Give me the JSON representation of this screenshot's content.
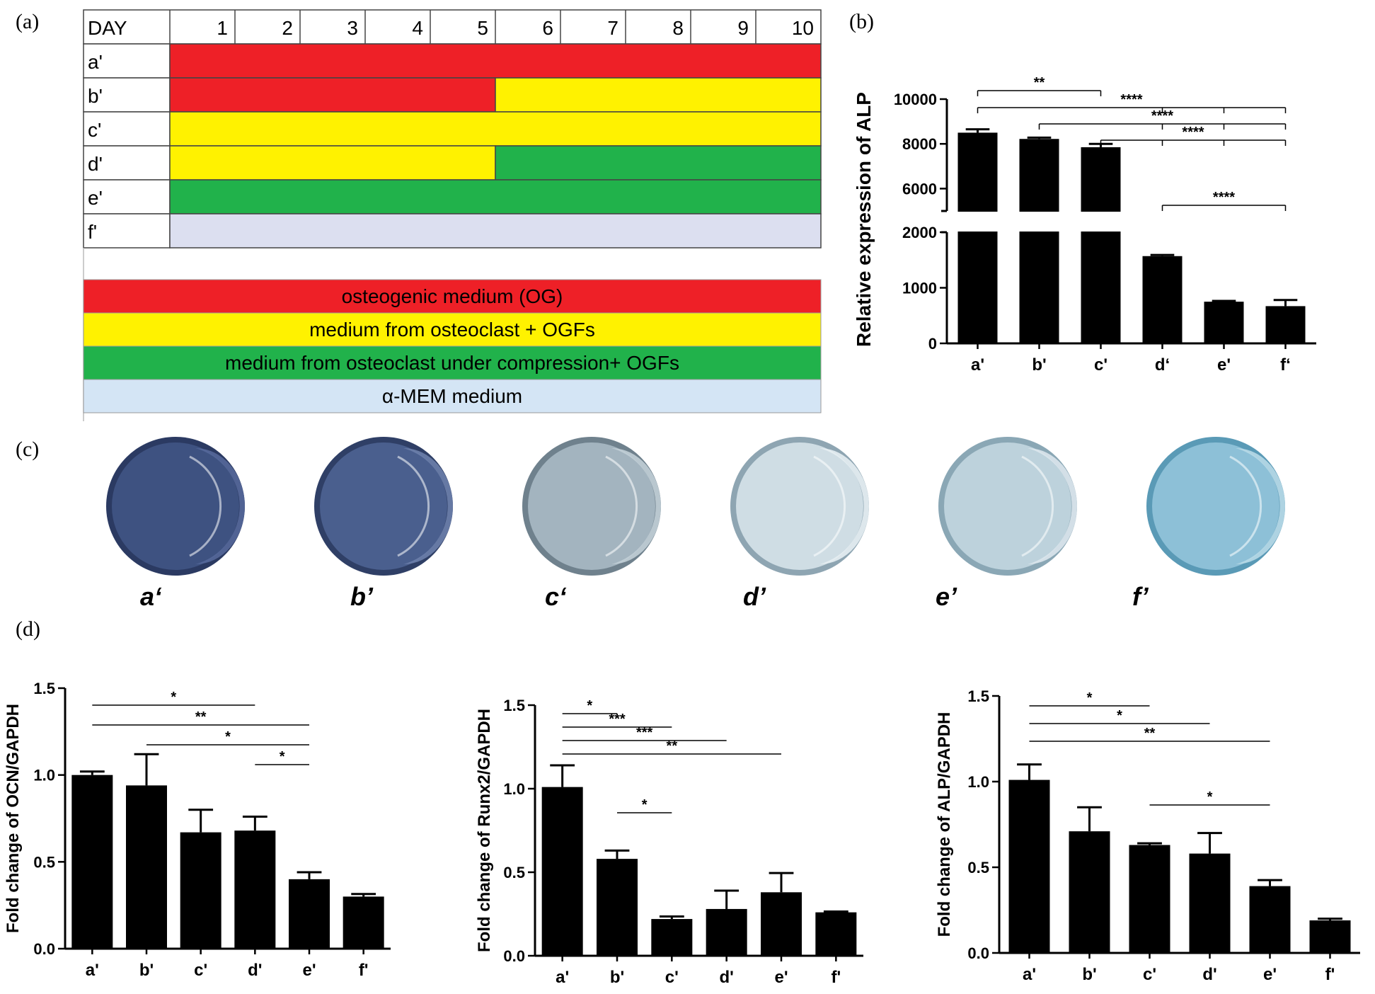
{
  "panel_labels": {
    "a": "(a)",
    "b": "(b)",
    "c": "(c)",
    "d": "(d)"
  },
  "schedule": {
    "day_header": "DAY",
    "days": [
      "1",
      "2",
      "3",
      "4",
      "5",
      "6",
      "7",
      "8",
      "9",
      "10"
    ],
    "rows": [
      {
        "label": "a'",
        "segments": [
          {
            "from": 1,
            "to": 10,
            "medium": "og"
          }
        ]
      },
      {
        "label": "b'",
        "segments": [
          {
            "from": 1,
            "to": 5,
            "medium": "og"
          },
          {
            "from": 6,
            "to": 10,
            "medium": "oc"
          }
        ]
      },
      {
        "label": "c'",
        "segments": [
          {
            "from": 1,
            "to": 10,
            "medium": "oc"
          }
        ]
      },
      {
        "label": "d'",
        "segments": [
          {
            "from": 1,
            "to": 5,
            "medium": "oc"
          },
          {
            "from": 6,
            "to": 10,
            "medium": "occ"
          }
        ]
      },
      {
        "label": "e'",
        "segments": [
          {
            "from": 1,
            "to": 10,
            "medium": "occ"
          }
        ]
      },
      {
        "label": "f'",
        "segments": [
          {
            "from": 1,
            "to": 10,
            "medium": "mem"
          }
        ]
      }
    ],
    "legend": [
      {
        "key": "og",
        "label": "osteogenic medium (OG)",
        "color": "#ee2027"
      },
      {
        "key": "oc",
        "label": "medium from osteoclast + OGFs",
        "color": "#fff200"
      },
      {
        "key": "occ",
        "label": "medium from osteoclast under compression+ OGFs",
        "color": "#21b24b"
      },
      {
        "key": "mem",
        "label": "α-MEM medium",
        "color": "#d4e5f5"
      }
    ],
    "mem_row_color": "#dcdff0"
  },
  "chart_data": [
    {
      "id": "b",
      "type": "bar",
      "ylabel": "Relative expression of ALP",
      "categories": [
        "a'",
        "b'",
        "c'",
        "d‘",
        "e'",
        "f‘"
      ],
      "values": [
        8500,
        8220,
        7850,
        1570,
        750,
        670
      ],
      "errors": [
        150,
        60,
        150,
        20,
        15,
        110
      ],
      "broken_axis": {
        "lower": [
          0,
          2000
        ],
        "upper": [
          5000,
          10000
        ]
      },
      "yticks_lower": [
        "0",
        "1000",
        "2000"
      ],
      "yticks_upper": [
        "6000",
        "8000",
        "10000"
      ],
      "significance": [
        {
          "from": 0,
          "to": 2,
          "label": "**"
        },
        {
          "from": 0,
          "to": 5,
          "label": "****",
          "ticks": [
            3,
            4
          ]
        },
        {
          "from": 1,
          "to": 5,
          "label": "****",
          "ticks": [
            3,
            4
          ]
        },
        {
          "from": 2,
          "to": 5,
          "label": "****",
          "ticks": [
            3,
            4
          ]
        },
        {
          "from": 3,
          "to": 5,
          "label": "****"
        }
      ]
    },
    {
      "id": "d1",
      "type": "bar",
      "ylabel": "Fold change of OCN/GAPDH",
      "categories": [
        "a'",
        "b'",
        "c'",
        "d'",
        "e'",
        "f'"
      ],
      "values": [
        1.0,
        0.94,
        0.67,
        0.68,
        0.4,
        0.3
      ],
      "errors": [
        0.02,
        0.18,
        0.13,
        0.08,
        0.04,
        0.015
      ],
      "ylim": [
        0,
        1.5
      ],
      "yticks": [
        "0.0",
        "0.5",
        "1.0",
        "1.5"
      ],
      "significance": [
        {
          "from": 0,
          "to": 3,
          "label": "*"
        },
        {
          "from": 0,
          "to": 4,
          "label": "**"
        },
        {
          "from": 1,
          "to": 4,
          "label": "*"
        },
        {
          "from": 3,
          "to": 4,
          "label": "*"
        }
      ]
    },
    {
      "id": "d2",
      "type": "bar",
      "ylabel": "Fold change of Runx2/GAPDH",
      "categories": [
        "a'",
        "b'",
        "c'",
        "d'",
        "e'",
        "f'"
      ],
      "values": [
        1.01,
        0.58,
        0.22,
        0.28,
        0.38,
        0.26
      ],
      "errors": [
        0.13,
        0.05,
        0.015,
        0.11,
        0.115,
        0.005
      ],
      "ylim": [
        0,
        1.5
      ],
      "yticks": [
        "0.0",
        "0.5",
        "1.0",
        "1.5"
      ],
      "significance": [
        {
          "from": 0,
          "to": 1,
          "label": "*"
        },
        {
          "from": 0,
          "to": 2,
          "label": "***"
        },
        {
          "from": 0,
          "to": 3,
          "label": "***"
        },
        {
          "from": 0,
          "to": 4,
          "label": "**"
        },
        {
          "from": 1,
          "to": 2,
          "label": "*"
        }
      ]
    },
    {
      "id": "d3",
      "type": "bar",
      "ylabel": "Fold change of ALP/GAPDH",
      "categories": [
        "a'",
        "b'",
        "c'",
        "d'",
        "e'",
        "f'"
      ],
      "values": [
        1.01,
        0.71,
        0.63,
        0.58,
        0.39,
        0.19
      ],
      "errors": [
        0.09,
        0.14,
        0.01,
        0.12,
        0.035,
        0.01
      ],
      "ylim": [
        0,
        1.5
      ],
      "yticks": [
        "0.0",
        "0.5",
        "1.0",
        "1.5"
      ],
      "significance": [
        {
          "from": 0,
          "to": 2,
          "label": "*"
        },
        {
          "from": 0,
          "to": 3,
          "label": "*"
        },
        {
          "from": 0,
          "to": 4,
          "label": "**"
        },
        {
          "from": 2,
          "to": 4,
          "label": "*"
        }
      ]
    }
  ],
  "dishes": [
    {
      "label": "a‘",
      "fill": "#3e5281",
      "edge": "#2b3a62",
      "shade": "#55689a"
    },
    {
      "label": "b’",
      "fill": "#4a5f8e",
      "edge": "#2f3f66",
      "shade": "#6d80ab"
    },
    {
      "label": "c‘",
      "fill": "#a3b4bf",
      "edge": "#6f818d",
      "shade": "#c1ced6"
    },
    {
      "label": "d’",
      "fill": "#cfdde4",
      "edge": "#8ea5b2",
      "shade": "#e6eef2"
    },
    {
      "label": "e’",
      "fill": "#bdd2dc",
      "edge": "#8aa7b5",
      "shade": "#dae6ec"
    },
    {
      "label": "f’",
      "fill": "#8dc0d7",
      "edge": "#5a9ab6",
      "shade": "#b7d9e7"
    }
  ]
}
